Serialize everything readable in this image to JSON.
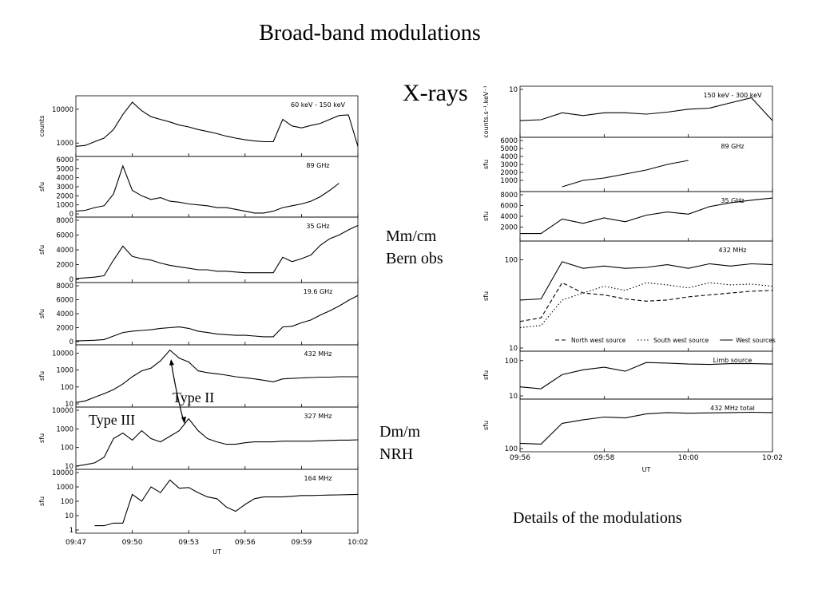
{
  "title": "Broad-band modulations",
  "labels": {
    "xrays": "X-rays",
    "mmcm_line1": "Mm/cm",
    "mmcm_line2": "Bern obs",
    "dmm_line1": "Dm/m",
    "dmm_line2": "NRH",
    "type2": "Type II",
    "type3": "Type III",
    "details": "Details of the modulations"
  },
  "chart_data": [
    {
      "type": "line",
      "id": "left-stack",
      "xlabel": "UT",
      "x_ticks": [
        "09:47",
        "09:50",
        "09:53",
        "09:56",
        "09:59",
        "10:02"
      ],
      "x_range_min": [
        0,
        15
      ],
      "panels": [
        {
          "name": "60 keV - 150 keV",
          "ylabel": "counts",
          "scale": "log",
          "ylim": [
            500,
            20000
          ],
          "yticks": [
            "10000",
            "1000"
          ],
          "x": [
            0,
            0.5,
            1.0,
            1.5,
            2.0,
            2.5,
            3.0,
            3.5,
            4.0,
            4.5,
            5.0,
            5.5,
            6.0,
            6.5,
            7.0,
            7.5,
            8.0,
            8.5,
            9.0,
            9.5,
            10.0,
            10.5,
            11.0,
            11.5,
            12.0,
            12.5,
            13.0,
            13.5,
            14.0,
            14.5,
            15.0
          ],
          "y": [
            800,
            850,
            1100,
            1400,
            2500,
            7000,
            16000,
            9000,
            6000,
            5000,
            4200,
            3400,
            3000,
            2500,
            2200,
            1900,
            1600,
            1400,
            1250,
            1150,
            1100,
            1100,
            5000,
            3200,
            2800,
            3300,
            3800,
            5000,
            6500,
            6800,
            800
          ]
        },
        {
          "name": "89 GHz",
          "ylabel": "sfu",
          "scale": "linear",
          "ylim": [
            0,
            6000
          ],
          "yticks": [
            "6000",
            "5000",
            "4000",
            "3000",
            "2000",
            "1000",
            "0"
          ],
          "x": [
            0,
            0.5,
            1.0,
            1.5,
            2.0,
            2.5,
            3.0,
            3.5,
            4.0,
            4.5,
            5.0,
            5.5,
            6.0,
            6.5,
            7.0,
            7.5,
            8.0,
            8.5,
            9.0,
            9.5,
            10.0,
            10.5,
            11.0,
            11.5,
            12.0,
            12.5,
            13.0,
            13.5,
            14.0
          ],
          "y": [
            300,
            400,
            700,
            900,
            2200,
            5300,
            2600,
            2000,
            1600,
            1800,
            1400,
            1300,
            1100,
            1000,
            900,
            700,
            700,
            500,
            300,
            100,
            100,
            300,
            700,
            900,
            1100,
            1400,
            1900,
            2600,
            3400
          ]
        },
        {
          "name": "35 GHz",
          "ylabel": "sfu",
          "scale": "linear",
          "ylim": [
            0,
            8000
          ],
          "yticks": [
            "8000",
            "6000",
            "4000",
            "2000",
            "0"
          ],
          "x": [
            0,
            0.5,
            1.0,
            1.5,
            2.0,
            2.5,
            3.0,
            3.5,
            4.0,
            4.5,
            5.0,
            5.5,
            6.0,
            6.5,
            7.0,
            7.5,
            8.0,
            8.5,
            9.0,
            9.5,
            10.0,
            10.5,
            11.0,
            11.5,
            12.0,
            12.5,
            13.0,
            13.5,
            14.0,
            14.5,
            15.0
          ],
          "y": [
            100,
            200,
            300,
            500,
            2600,
            4500,
            3100,
            2800,
            2600,
            2200,
            1900,
            1700,
            1500,
            1300,
            1300,
            1100,
            1100,
            1000,
            900,
            900,
            900,
            900,
            3000,
            2400,
            2800,
            3300,
            4600,
            5500,
            6000,
            6700,
            7300
          ]
        },
        {
          "name": "19.6 GHz",
          "ylabel": "sfu",
          "scale": "linear",
          "ylim": [
            0,
            8000
          ],
          "yticks": [
            "8000",
            "6000",
            "4000",
            "2000",
            "0"
          ],
          "x": [
            0,
            0.5,
            1.0,
            1.5,
            2.0,
            2.5,
            3.0,
            3.5,
            4.0,
            4.5,
            5.0,
            5.5,
            6.0,
            6.5,
            7.0,
            7.5,
            8.0,
            8.5,
            9.0,
            9.5,
            10.0,
            10.5,
            11.0,
            11.5,
            12.0,
            12.5,
            13.0,
            13.5,
            14.0,
            14.5,
            15.0
          ],
          "y": [
            100,
            150,
            200,
            300,
            800,
            1300,
            1500,
            1600,
            1700,
            1900,
            2000,
            2100,
            1900,
            1500,
            1300,
            1100,
            1000,
            900,
            900,
            800,
            700,
            700,
            2100,
            2200,
            2700,
            3100,
            3800,
            4400,
            5100,
            5900,
            6600
          ]
        },
        {
          "name": "432 MHz",
          "ylabel": "sfu",
          "scale": "log",
          "ylim": [
            10,
            20000
          ],
          "yticks": [
            "10000",
            "1000",
            "100",
            "10"
          ],
          "x": [
            0,
            0.5,
            1.0,
            1.5,
            2.0,
            2.5,
            3.0,
            3.5,
            4.0,
            4.5,
            5.0,
            5.5,
            6.0,
            6.5,
            7.0,
            7.5,
            8.0,
            8.5,
            9.0,
            9.5,
            10.0,
            10.5,
            11.0,
            11.5,
            12.0,
            12.5,
            13.0,
            13.5,
            14.0,
            14.5,
            15.0
          ],
          "y": [
            12,
            15,
            25,
            40,
            70,
            150,
            400,
            900,
            1300,
            3500,
            15000,
            5000,
            3000,
            900,
            700,
            600,
            500,
            400,
            350,
            300,
            250,
            200,
            300,
            320,
            340,
            360,
            380,
            380,
            400,
            400,
            400
          ]
        },
        {
          "name": "327 MHz",
          "ylabel": "sfu",
          "scale": "log",
          "ylim": [
            10,
            10000
          ],
          "yticks": [
            "10000",
            "1000",
            "100",
            "10"
          ],
          "x": [
            0,
            0.5,
            1.0,
            1.5,
            2.0,
            2.5,
            3.0,
            3.5,
            4.0,
            4.5,
            5.0,
            5.5,
            6.0,
            6.5,
            7.0,
            7.5,
            8.0,
            8.5,
            9.0,
            9.5,
            10.0,
            10.5,
            11.0,
            11.5,
            12.0,
            12.5,
            13.0,
            13.5,
            14.0,
            14.5,
            15.0
          ],
          "y": [
            10,
            12,
            15,
            30,
            300,
            600,
            250,
            800,
            300,
            200,
            400,
            800,
            3500,
            800,
            300,
            200,
            150,
            150,
            180,
            200,
            200,
            200,
            220,
            220,
            220,
            220,
            230,
            240,
            250,
            250,
            260
          ]
        },
        {
          "name": "164 MHz",
          "ylabel": "sfu",
          "scale": "log",
          "ylim": [
            1,
            10000
          ],
          "yticks": [
            "10000",
            "1000",
            "100",
            "10",
            "1"
          ],
          "x": [
            1.0,
            1.5,
            2.0,
            2.5,
            3.0,
            3.5,
            4.0,
            4.5,
            5.0,
            5.5,
            6.0,
            6.5,
            7.0,
            7.5,
            8.0,
            8.5,
            9.0,
            9.5,
            10.0,
            10.5,
            11.0,
            11.5,
            12.0,
            12.5,
            13.0,
            13.5,
            14.0,
            14.5,
            15.0
          ],
          "y": [
            2,
            2,
            3,
            3,
            300,
            100,
            1000,
            400,
            3000,
            800,
            900,
            400,
            200,
            150,
            40,
            20,
            60,
            150,
            200,
            200,
            200,
            220,
            250,
            250,
            260,
            270,
            280,
            290,
            300
          ]
        }
      ]
    },
    {
      "type": "line",
      "id": "right-stack",
      "xlabel": "UT",
      "x_ticks": [
        "09:56",
        "09:58",
        "10:00",
        "10:02"
      ],
      "x_range_min": [
        0,
        6
      ],
      "panels": [
        {
          "name": "150 keV - 300 keV",
          "ylabel": "counts.s⁻¹.keV⁻¹",
          "scale": "log",
          "ylim": [
            1,
            10
          ],
          "yticks": [
            "10"
          ],
          "x": [
            0,
            0.5,
            1.0,
            1.5,
            2.0,
            2.5,
            3.0,
            3.5,
            4.0,
            4.5,
            5.0,
            5.5,
            6.0
          ],
          "y": [
            2.0,
            2.1,
            3.0,
            2.6,
            3.0,
            3.0,
            2.8,
            3.1,
            3.6,
            3.8,
            5.0,
            6.5,
            2.0
          ]
        },
        {
          "name": "89 GHz",
          "ylabel": "sfu",
          "scale": "linear",
          "ylim": [
            0,
            6000
          ],
          "yticks": [
            "6000",
            "5000",
            "4000",
            "3000",
            "2000",
            "1000"
          ],
          "x": [
            1.0,
            1.5,
            2.0,
            2.5,
            3.0,
            3.5,
            4.0
          ],
          "y": [
            200,
            1000,
            1300,
            1800,
            2300,
            3000,
            3500
          ]
        },
        {
          "name": "35 GHz",
          "ylabel": "sfu",
          "scale": "linear",
          "ylim": [
            0,
            8000
          ],
          "yticks": [
            "8000",
            "6000",
            "4000",
            "2000"
          ],
          "x": [
            0,
            0.5,
            1.0,
            1.5,
            2.0,
            2.5,
            3.0,
            3.5,
            4.0,
            4.5,
            5.0,
            5.5,
            6.0
          ],
          "y": [
            800,
            800,
            3500,
            2700,
            3700,
            3000,
            4200,
            4800,
            4400,
            5800,
            6500,
            7000,
            7400
          ]
        },
        {
          "name": "432 MHz",
          "ylabel": "sfu",
          "scale": "log",
          "ylim": [
            10,
            150
          ],
          "yticks": [
            "100",
            "10"
          ],
          "legend": [
            "North west source",
            "South west source",
            "West sources"
          ],
          "series": [
            {
              "name": "West sources",
              "x": [
                0,
                0.5,
                1.0,
                1.5,
                2.0,
                2.5,
                3.0,
                3.5,
                4.0,
                4.5,
                5.0,
                5.5,
                6.0
              ],
              "y": [
                35,
                36,
                95,
                80,
                85,
                80,
                82,
                88,
                80,
                90,
                85,
                90,
                88
              ]
            },
            {
              "name": "North west source",
              "x": [
                0,
                0.5,
                1.0,
                1.5,
                2.0,
                2.5,
                3.0,
                3.5,
                4.0,
                4.5,
                5.0,
                5.5,
                6.0
              ],
              "y": [
                20,
                22,
                55,
                42,
                40,
                36,
                34,
                35,
                38,
                40,
                42,
                44,
                45
              ]
            },
            {
              "name": "South west source",
              "x": [
                0,
                0.5,
                1.0,
                1.5,
                2.0,
                2.5,
                3.0,
                3.5,
                4.0,
                4.5,
                5.0,
                5.5,
                6.0
              ],
              "y": [
                17,
                18,
                35,
                42,
                50,
                45,
                55,
                52,
                48,
                55,
                52,
                53,
                50
              ]
            }
          ]
        },
        {
          "name": "Limb source",
          "ylabel": "sfu",
          "scale": "log",
          "ylim": [
            10,
            150
          ],
          "yticks": [
            "100",
            "10"
          ],
          "x": [
            0,
            0.5,
            1.0,
            1.5,
            2.0,
            2.5,
            3.0,
            3.5,
            4.0,
            4.5,
            5.0,
            5.5,
            6.0
          ],
          "y": [
            18,
            16,
            40,
            55,
            65,
            50,
            88,
            85,
            80,
            78,
            82,
            82,
            80
          ]
        },
        {
          "name": "432 MHz total",
          "ylabel": "sfu",
          "scale": "log",
          "ylim": [
            100,
            1000
          ],
          "yticks": [
            "100"
          ],
          "x": [
            0,
            0.5,
            1.0,
            1.5,
            2.0,
            2.5,
            3.0,
            3.5,
            4.0,
            4.5,
            5.0,
            5.5,
            6.0
          ],
          "y": [
            130,
            125,
            350,
            420,
            480,
            460,
            560,
            600,
            580,
            590,
            600,
            610,
            600
          ]
        }
      ]
    }
  ]
}
